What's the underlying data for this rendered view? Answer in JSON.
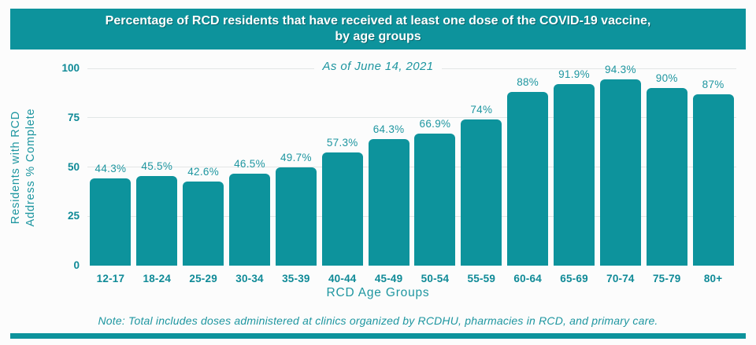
{
  "colors": {
    "teal": "#0D939C",
    "text_teal": "#1E96A0",
    "tick_teal": "#0F8A97",
    "grid": "#E2E6E6"
  },
  "banner": {
    "title_lines": [
      "Percentage of RCD residents that have received at least one dose of the COVID-19 vaccine,",
      "by age groups"
    ]
  },
  "chart_data": {
    "type": "bar",
    "title": "Percentage of RCD residents that have received at least one dose of the COVID-19 vaccine, by age groups",
    "subtitle": "As of June 14, 2021",
    "categories": [
      "12-17",
      "18-24",
      "25-29",
      "30-34",
      "35-39",
      "40-44",
      "45-49",
      "50-54",
      "55-59",
      "60-64",
      "65-69",
      "70-74",
      "75-79",
      "80+"
    ],
    "values": [
      44.3,
      45.5,
      42.6,
      46.5,
      49.7,
      57.3,
      64.3,
      66.9,
      74,
      88,
      91.9,
      94.3,
      90,
      87
    ],
    "value_label_suffix": "%",
    "xlabel": "RCD Age Groups",
    "ylabel": "Residents with RCD Address % Complete",
    "ylabel_lines": [
      "Residents with RCD",
      "Address % Complete"
    ],
    "yticks": [
      0,
      25,
      50,
      75,
      100
    ],
    "ylim": [
      0,
      100
    ],
    "grid": true,
    "legend": false,
    "bar_color": "#0D939C"
  },
  "note": "Note: Total includes doses administered at clinics organized by RCDHU, pharmacies in RCD, and primary care."
}
